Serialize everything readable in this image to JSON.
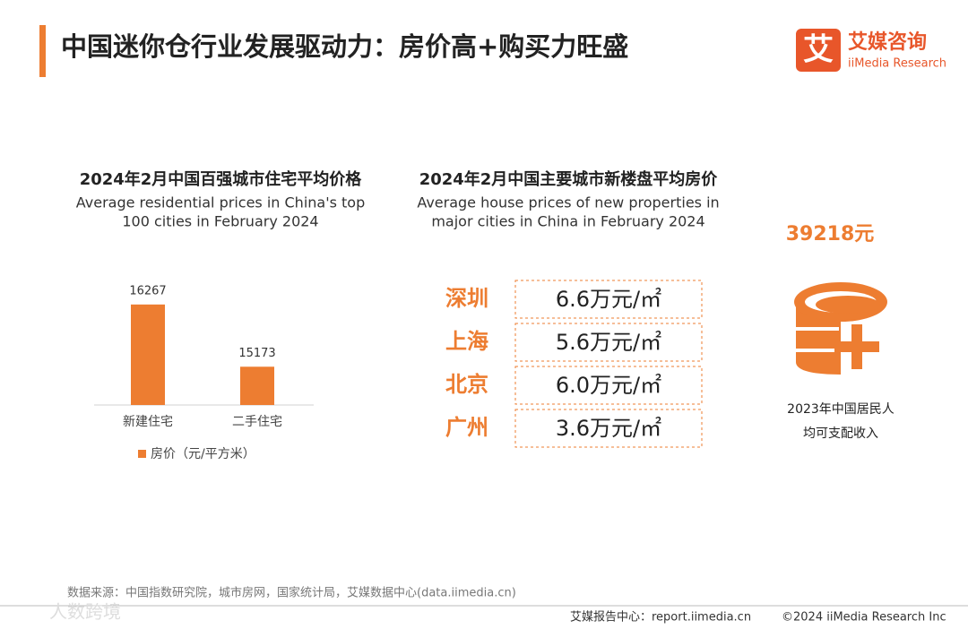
{
  "header": {
    "title": "中国迷你仓行业发展驱动力：房价高+购买力旺盛",
    "logo_mark": "艾",
    "logo_cn": "艾媒咨询",
    "logo_en": "iiMedia Research"
  },
  "chart_data": {
    "type": "bar",
    "title": "2024年2月中国百强城市住宅平均价格",
    "subtitle": [
      "Average residential prices in China's top",
      "100 cities in February 2024"
    ],
    "categories": [
      "新建住宅",
      "二手住宅"
    ],
    "series": [
      {
        "name": "房价（元/平方米）",
        "color": "#ed7d31",
        "values": [
          16267,
          15173
        ]
      }
    ],
    "ylim": [
      14500,
      16800
    ],
    "legend": "bottom"
  },
  "prices": {
    "title": "2024年2月中国主要城市新楼盘平均房价",
    "subtitle": [
      "Average house prices of new properties in",
      "major cities in China in February 2024"
    ],
    "rows": [
      {
        "city": "深圳",
        "price": "6.6万元/㎡"
      },
      {
        "city": "上海",
        "price": "5.6万元/㎡"
      },
      {
        "city": "北京",
        "price": "6.0万元/㎡"
      },
      {
        "city": "广州",
        "price": "3.6万元/㎡"
      }
    ]
  },
  "income": {
    "value": "39218元",
    "caption": [
      "2023年中国居民人",
      "均可支配收入"
    ]
  },
  "footer": {
    "source": "数据来源：中国指数研究院，城市房网，国家统计局，艾媒数据中心(data.iimedia.cn)",
    "site": "艾媒报告中心：report.iimedia.cn",
    "copyright": "©2024  iiMedia Research  Inc",
    "watermark": "人数跨境"
  }
}
